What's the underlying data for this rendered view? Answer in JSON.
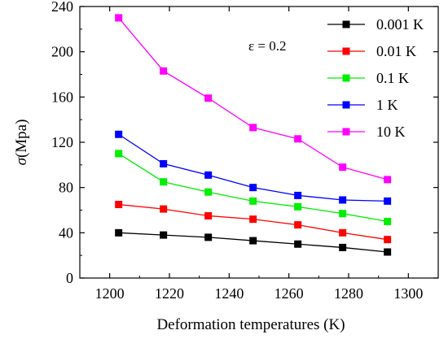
{
  "chart_data": {
    "type": "line",
    "title": "",
    "xlabel": "Deformation temperatures (K)",
    "ylabel": "σ(Mpa)",
    "xlim": [
      1190,
      1310
    ],
    "ylim": [
      0,
      240
    ],
    "xticks": [
      1200,
      1220,
      1240,
      1260,
      1280,
      1300
    ],
    "yticks": [
      0,
      40,
      80,
      120,
      160,
      200,
      240
    ],
    "annotation": "ε = 0.2",
    "legend_position": "top-right",
    "x": [
      1203,
      1218,
      1233,
      1248,
      1263,
      1278,
      1293
    ],
    "series": [
      {
        "name": "0.001 K",
        "color": "#000000",
        "values": [
          40,
          38,
          36,
          33,
          30,
          27,
          23
        ]
      },
      {
        "name": "0.01 K",
        "color": "#ff0000",
        "values": [
          65,
          61,
          55,
          52,
          47,
          40,
          34
        ]
      },
      {
        "name": "0.1 K",
        "color": "#00ee00",
        "values": [
          110,
          85,
          76,
          68,
          63,
          57,
          50
        ]
      },
      {
        "name": "1 K",
        "color": "#0000ff",
        "values": [
          127,
          101,
          91,
          80,
          73,
          69,
          68
        ]
      },
      {
        "name": "10 K",
        "color": "#ff00ff",
        "values": [
          230,
          183,
          159,
          133,
          123,
          98,
          87
        ]
      }
    ]
  }
}
